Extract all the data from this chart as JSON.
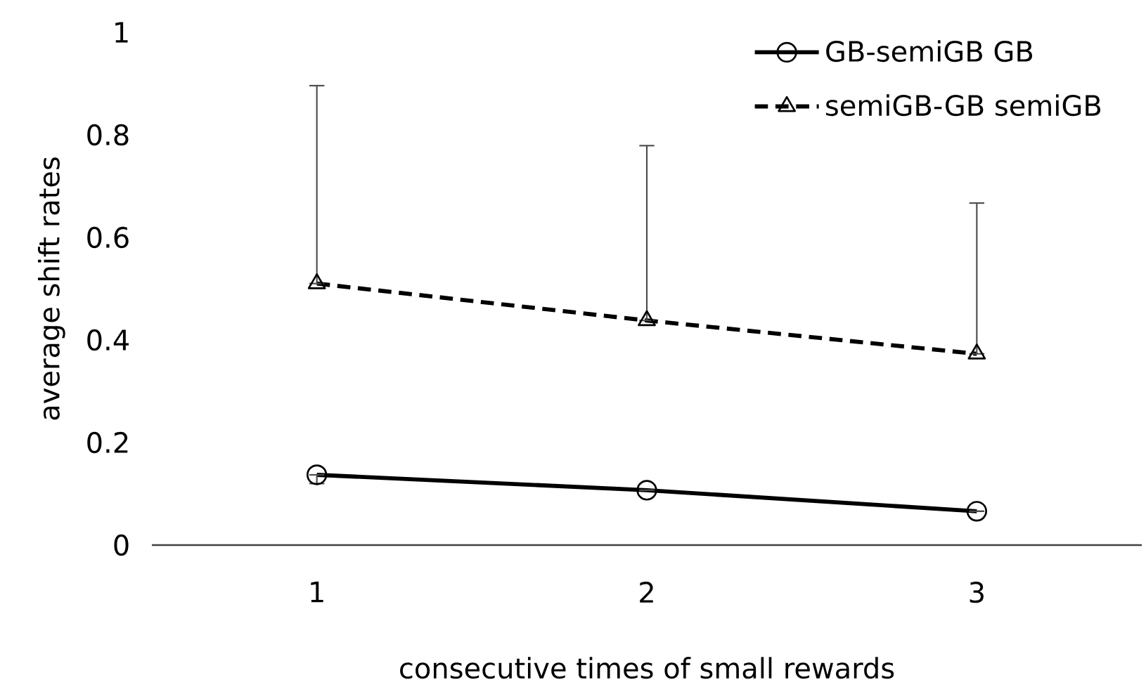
{
  "chart_data": {
    "type": "line",
    "xlabel": "consecutive times of small rewards",
    "ylabel": "average shift rates",
    "categories": [
      "1",
      "2",
      "3"
    ],
    "series": [
      {
        "name": "GB-semiGB GB",
        "color": "#000000",
        "marker": "circle",
        "line_style": "solid",
        "values": [
          0.137,
          0.107,
          0.066
        ],
        "errors": [
          [
            0.12,
            0.137
          ],
          null,
          null
        ]
      },
      {
        "name": "semiGB-GB semiGB",
        "color": "#000000",
        "marker": "triangle",
        "line_style": "dashed",
        "values": [
          0.51,
          0.438,
          0.373
        ],
        "errors": [
          [
            0.51,
            0.896
          ],
          [
            0.438,
            0.779
          ],
          [
            0.373,
            0.667
          ]
        ]
      }
    ],
    "ylim": [
      0,
      1
    ],
    "yticks": [
      0,
      0.2,
      0.4,
      0.6,
      0.8,
      1
    ],
    "grid": false,
    "legend": "top right"
  }
}
